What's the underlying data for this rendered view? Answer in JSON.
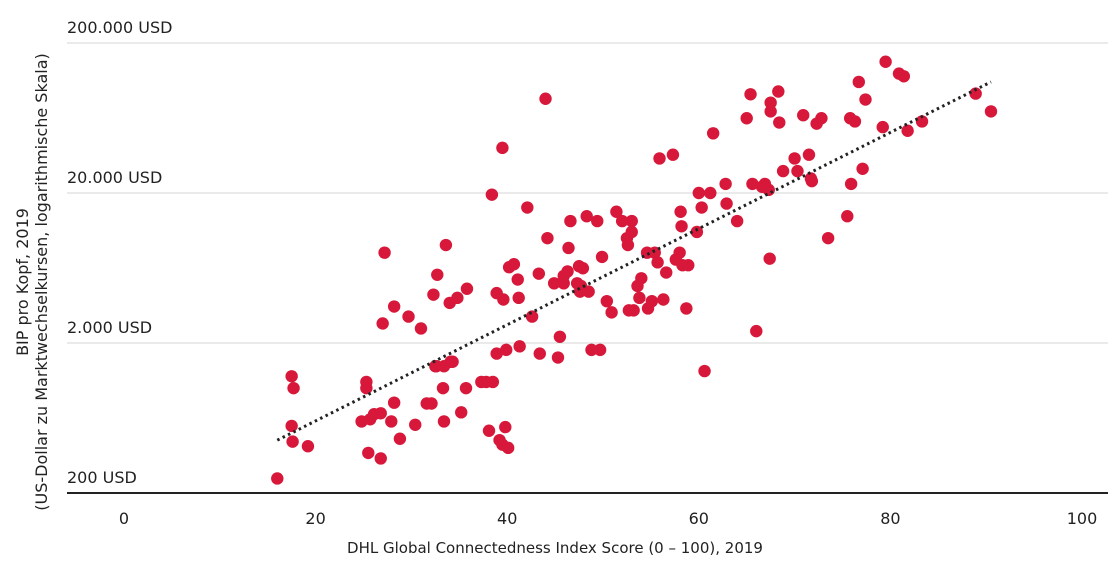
{
  "chart_data": {
    "type": "scatter",
    "title": "",
    "xlabel": "DHL Global Connectedness Index Score (0 – 100), 2019",
    "ylabel_line1": "BIP pro Kopf, 2019",
    "ylabel_line2": "(US-Dollar zu Marktwechselkursen, logarithmische Skala)",
    "xlim": [
      0,
      100
    ],
    "ylim": [
      200,
      200000
    ],
    "yscale": "log",
    "xticks": [
      0,
      20,
      40,
      60,
      80,
      100
    ],
    "xtick_labels": [
      "0",
      "20",
      "40",
      "60",
      "80",
      "100"
    ],
    "yticks": [
      200,
      2000,
      20000,
      200000
    ],
    "ytick_labels": [
      "200 USD",
      "2.000 USD",
      "20.000 USD",
      "200.000 USD"
    ],
    "grid": "horizontal",
    "point_color": "#d7183a",
    "trend_color": "#222222",
    "trendline": {
      "x": [
        16,
        90.5
      ],
      "y": [
        450,
        110000
      ]
    },
    "points": [
      [
        16,
        250
      ],
      [
        17.5,
        1200
      ],
      [
        17.7,
        1000
      ],
      [
        17.5,
        560
      ],
      [
        17.6,
        440
      ],
      [
        19.2,
        410
      ],
      [
        24.8,
        600
      ],
      [
        25.3,
        1000
      ],
      [
        25.3,
        1100
      ],
      [
        25.5,
        370
      ],
      [
        25.7,
        620
      ],
      [
        26.1,
        670
      ],
      [
        26.8,
        340
      ],
      [
        26.8,
        680
      ],
      [
        27,
        2700
      ],
      [
        27.2,
        8000
      ],
      [
        27.9,
        600
      ],
      [
        28.2,
        800
      ],
      [
        28.2,
        3500
      ],
      [
        28.8,
        460
      ],
      [
        29.7,
        3000
      ],
      [
        30.4,
        570
      ],
      [
        31,
        2500
      ],
      [
        31.6,
        790
      ],
      [
        32.1,
        790
      ],
      [
        32.3,
        4200
      ],
      [
        32.5,
        1400
      ],
      [
        32.6,
        1400
      ],
      [
        32.7,
        5700
      ],
      [
        33.3,
        1000
      ],
      [
        33.4,
        600
      ],
      [
        33.4,
        1400
      ],
      [
        33.6,
        9000
      ],
      [
        34,
        3700
      ],
      [
        34.1,
        1500
      ],
      [
        34.3,
        1500
      ],
      [
        34.8,
        4000
      ],
      [
        35.2,
        690
      ],
      [
        35.7,
        1000
      ],
      [
        35.8,
        4600
      ],
      [
        37.3,
        1100
      ],
      [
        37.8,
        1100
      ],
      [
        38.1,
        520
      ],
      [
        38.4,
        19500
      ],
      [
        38.5,
        1100
      ],
      [
        38.9,
        4300
      ],
      [
        38.9,
        1700
      ],
      [
        39.2,
        450
      ],
      [
        39.5,
        420
      ],
      [
        39.5,
        40000
      ],
      [
        39.6,
        3900
      ],
      [
        39.8,
        550
      ],
      [
        39.9,
        1800
      ],
      [
        40.1,
        400
      ],
      [
        40.2,
        6400
      ],
      [
        40.7,
        6700
      ],
      [
        41.1,
        5300
      ],
      [
        41.2,
        4000
      ],
      [
        41.3,
        1900
      ],
      [
        42.1,
        16000
      ],
      [
        42.6,
        3000
      ],
      [
        43.3,
        5800
      ],
      [
        43.4,
        1700
      ],
      [
        44,
        85000
      ],
      [
        44.2,
        10000
      ],
      [
        44.9,
        5000
      ],
      [
        45.3,
        1600
      ],
      [
        45.5,
        2200
      ],
      [
        45.9,
        5000
      ],
      [
        45.9,
        5600
      ],
      [
        46.3,
        6000
      ],
      [
        46.4,
        8600
      ],
      [
        46.6,
        13000
      ],
      [
        47.3,
        5000
      ],
      [
        47.5,
        6500
      ],
      [
        47.6,
        4400
      ],
      [
        47.7,
        4800
      ],
      [
        47.9,
        6300
      ],
      [
        48.3,
        14000
      ],
      [
        48.5,
        4400
      ],
      [
        48.8,
        1800
      ],
      [
        49.4,
        13000
      ],
      [
        49.7,
        1800
      ],
      [
        49.9,
        7500
      ],
      [
        50.4,
        3800
      ],
      [
        50.9,
        3200
      ],
      [
        51.4,
        15000
      ],
      [
        52,
        13000
      ],
      [
        52.5,
        10000
      ],
      [
        52.6,
        9000
      ],
      [
        52.7,
        3300
      ],
      [
        53,
        11000
      ],
      [
        53,
        13000
      ],
      [
        53.2,
        3300
      ],
      [
        53.6,
        4800
      ],
      [
        53.8,
        4000
      ],
      [
        54,
        5400
      ],
      [
        54.6,
        8000
      ],
      [
        54.7,
        3400
      ],
      [
        55.1,
        3800
      ],
      [
        55.4,
        8000
      ],
      [
        55.7,
        6900
      ],
      [
        55.9,
        34000
      ],
      [
        56.3,
        3900
      ],
      [
        56.6,
        5900
      ],
      [
        57.3,
        36000
      ],
      [
        57.6,
        7200
      ],
      [
        58,
        8000
      ],
      [
        58.1,
        15000
      ],
      [
        58.2,
        12000
      ],
      [
        58.3,
        6600
      ],
      [
        58.7,
        3400
      ],
      [
        58.9,
        6600
      ],
      [
        59.8,
        11000
      ],
      [
        60,
        20000
      ],
      [
        60.3,
        16000
      ],
      [
        60.6,
        1300
      ],
      [
        61.2,
        20000
      ],
      [
        61.5,
        50000
      ],
      [
        62.8,
        23000
      ],
      [
        62.9,
        17000
      ],
      [
        64,
        13000
      ],
      [
        65,
        63000
      ],
      [
        65.4,
        91000
      ],
      [
        65.6,
        23000
      ],
      [
        66,
        2400
      ],
      [
        66.6,
        22000
      ],
      [
        66.9,
        23000
      ],
      [
        67.3,
        21000
      ],
      [
        67.4,
        7300
      ],
      [
        67.5,
        70000
      ],
      [
        67.5,
        80000
      ],
      [
        68.3,
        95000
      ],
      [
        68.4,
        59000
      ],
      [
        68.8,
        28000
      ],
      [
        70,
        34000
      ],
      [
        70.3,
        28000
      ],
      [
        70.9,
        66000
      ],
      [
        71.5,
        36000
      ],
      [
        71.7,
        25000
      ],
      [
        71.8,
        24000
      ],
      [
        72.3,
        58000
      ],
      [
        72.8,
        63000
      ],
      [
        73.5,
        10000
      ],
      [
        75.5,
        14000
      ],
      [
        75.8,
        63000
      ],
      [
        75.9,
        23000
      ],
      [
        76.3,
        60000
      ],
      [
        76.7,
        110000
      ],
      [
        77.1,
        29000
      ],
      [
        77.4,
        84000
      ],
      [
        79.2,
        55000
      ],
      [
        79.5,
        150000
      ],
      [
        80.9,
        125000
      ],
      [
        81.4,
        120000
      ],
      [
        81.8,
        52000
      ],
      [
        83.3,
        60000
      ],
      [
        88.9,
        92000
      ],
      [
        90.5,
        70000
      ]
    ]
  }
}
